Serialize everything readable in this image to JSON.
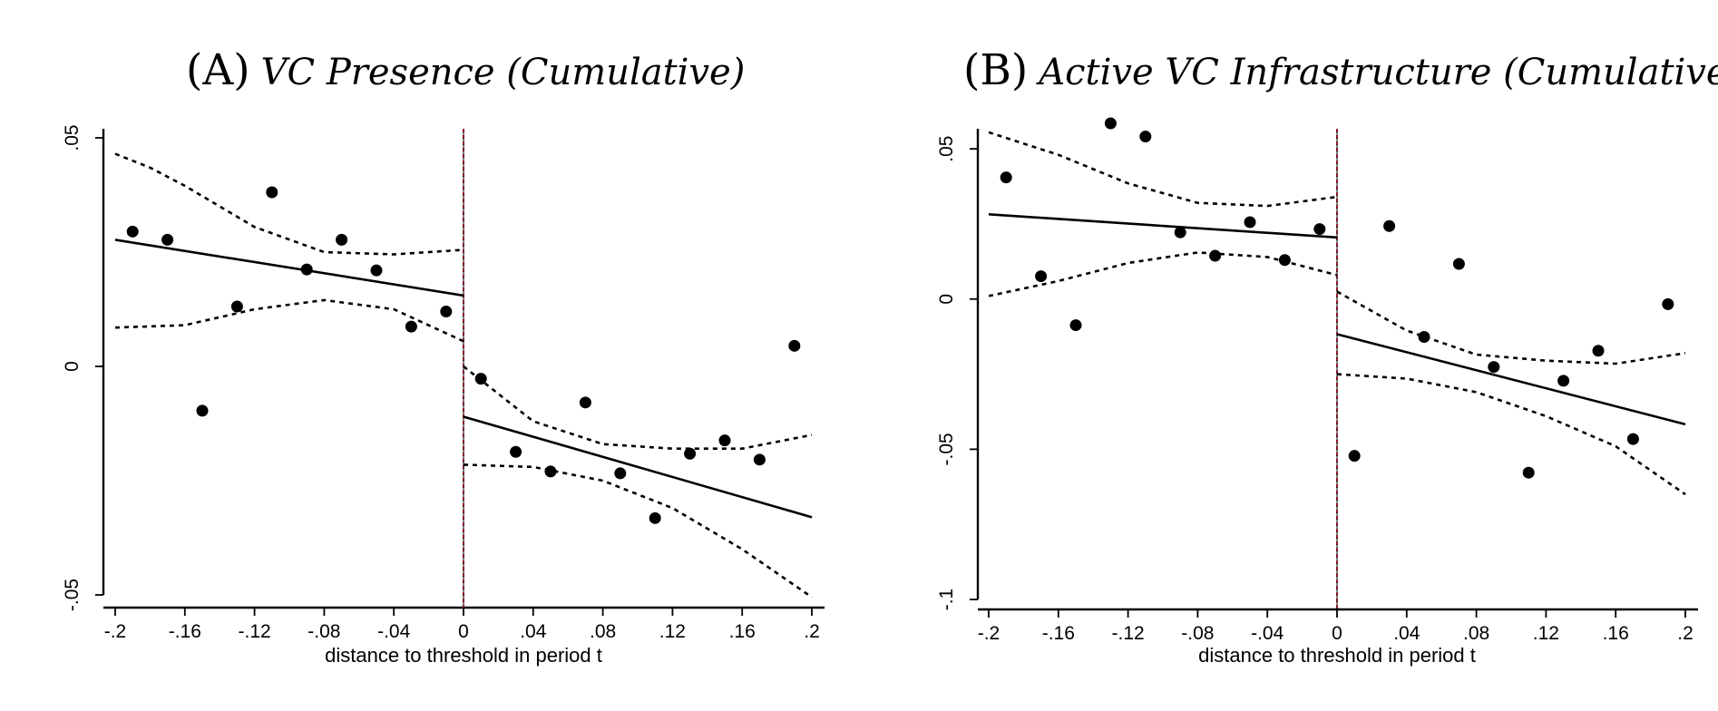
{
  "panels": [
    {
      "letter": "(A)",
      "subtitle": "VC Presence (Cumulative)"
    },
    {
      "letter": "(B)",
      "subtitle": "Active VC Infrastructure (Cumulative)"
    }
  ],
  "chart_data": [
    {
      "type": "scatter",
      "title": "(A) VC Presence (Cumulative)",
      "xlabel": "distance to threshold in period t",
      "ylabel": "",
      "xlim": [
        -0.2,
        0.2
      ],
      "ylim": [
        -0.05,
        0.05
      ],
      "xticks": [
        -0.2,
        -0.16,
        -0.12,
        -0.08,
        -0.04,
        0,
        0.04,
        0.08,
        0.12,
        0.16,
        0.2
      ],
      "xtick_labels": [
        "-.2",
        "-.16",
        "-.12",
        "-.08",
        "-.04",
        "0",
        ".04",
        ".08",
        ".12",
        ".16",
        ".2"
      ],
      "yticks": [
        -0.05,
        0,
        0.05
      ],
      "ytick_labels": [
        "-.05",
        "0",
        ".05"
      ],
      "cutoff": 0,
      "points": [
        [
          -0.19,
          0.0295
        ],
        [
          -0.17,
          0.0277
        ],
        [
          -0.15,
          -0.0097
        ],
        [
          -0.13,
          0.0131
        ],
        [
          -0.11,
          0.0381
        ],
        [
          -0.09,
          0.0212
        ],
        [
          -0.07,
          0.0277
        ],
        [
          -0.05,
          0.021
        ],
        [
          -0.03,
          0.0087
        ],
        [
          -0.01,
          0.012
        ],
        [
          0.01,
          -0.0027
        ],
        [
          0.03,
          -0.0187
        ],
        [
          0.05,
          -0.023
        ],
        [
          0.07,
          -0.0079
        ],
        [
          0.09,
          -0.0234
        ],
        [
          0.11,
          -0.0332
        ],
        [
          0.13,
          -0.0191
        ],
        [
          0.15,
          -0.0162
        ],
        [
          0.17,
          -0.0204
        ],
        [
          0.19,
          0.0045
        ]
      ],
      "fit": {
        "left": {
          "x": [
            -0.2,
            0
          ],
          "y": [
            0.0277,
            0.0155
          ]
        },
        "right": {
          "x": [
            0,
            0.2
          ],
          "y": [
            -0.011,
            -0.033
          ]
        }
      },
      "ci": {
        "left_upper": {
          "x": [
            -0.2,
            -0.18,
            -0.16,
            -0.12,
            -0.08,
            -0.04,
            0
          ],
          "y": [
            0.0465,
            0.0435,
            0.0395,
            0.0305,
            0.025,
            0.0245,
            0.0255
          ]
        },
        "left_lower": {
          "x": [
            -0.2,
            -0.16,
            -0.12,
            -0.08,
            -0.04,
            0
          ],
          "y": [
            0.0085,
            0.009,
            0.0125,
            0.0145,
            0.0125,
            0.0055
          ]
        },
        "right_upper": {
          "x": [
            0,
            0.04,
            0.08,
            0.12,
            0.16,
            0.2
          ],
          "y": [
            0.0,
            -0.012,
            -0.017,
            -0.018,
            -0.018,
            -0.015
          ]
        },
        "right_lower": {
          "x": [
            0,
            0.04,
            0.08,
            0.12,
            0.16,
            0.2
          ],
          "y": [
            -0.0215,
            -0.022,
            -0.025,
            -0.031,
            -0.04,
            -0.0505
          ]
        }
      }
    },
    {
      "type": "scatter",
      "title": "(B) Active VC Infrastructure (Cumulative)",
      "xlabel": "distance to threshold in period t",
      "ylabel": "",
      "xlim": [
        -0.2,
        0.2
      ],
      "ylim": [
        -0.1,
        0.06
      ],
      "xticks": [
        -0.2,
        -0.16,
        -0.12,
        -0.08,
        -0.04,
        0,
        0.04,
        0.08,
        0.12,
        0.16,
        0.2
      ],
      "xtick_labels": [
        "-.2",
        "-.16",
        "-.12",
        "-.08",
        "-.04",
        "0",
        ".04",
        ".08",
        ".12",
        ".16",
        ".2"
      ],
      "yticks": [
        -0.1,
        -0.05,
        0,
        0.05
      ],
      "ytick_labels": [
        "-.1",
        "-.05",
        "0",
        ".05"
      ],
      "cutoff": 0,
      "points": [
        [
          -0.19,
          0.0405
        ],
        [
          -0.17,
          0.0076
        ],
        [
          -0.15,
          -0.0087
        ],
        [
          -0.13,
          0.0585
        ],
        [
          -0.11,
          0.0541
        ],
        [
          -0.09,
          0.0222
        ],
        [
          -0.07,
          0.0144
        ],
        [
          -0.05,
          0.0256
        ],
        [
          -0.03,
          0.013
        ],
        [
          -0.01,
          0.0233
        ],
        [
          0.01,
          -0.0522
        ],
        [
          0.03,
          0.0243
        ],
        [
          0.05,
          -0.0126
        ],
        [
          0.07,
          0.0117
        ],
        [
          0.09,
          -0.0226
        ],
        [
          0.11,
          -0.0578
        ],
        [
          0.13,
          -0.0272
        ],
        [
          0.15,
          -0.0172
        ],
        [
          0.17,
          -0.0466
        ],
        [
          0.19,
          -0.0017
        ]
      ],
      "fit": {
        "left": {
          "x": [
            -0.2,
            0
          ],
          "y": [
            0.0282,
            0.0205
          ]
        },
        "right": {
          "x": [
            0,
            0.2
          ],
          "y": [
            -0.0117,
            -0.0417
          ]
        }
      },
      "ci": {
        "left_upper": {
          "x": [
            -0.2,
            -0.16,
            -0.12,
            -0.08,
            -0.04,
            0
          ],
          "y": [
            0.0555,
            0.048,
            0.0385,
            0.032,
            0.031,
            0.034
          ]
        },
        "left_lower": {
          "x": [
            -0.2,
            -0.16,
            -0.12,
            -0.08,
            -0.04,
            0
          ],
          "y": [
            0.001,
            0.006,
            0.012,
            0.0155,
            0.014,
            0.008
          ]
        },
        "right_upper": {
          "x": [
            0,
            0.04,
            0.08,
            0.12,
            0.16,
            0.2
          ],
          "y": [
            0.0025,
            -0.0105,
            -0.0185,
            -0.0205,
            -0.0215,
            -0.018
          ]
        },
        "right_lower": {
          "x": [
            0,
            0.04,
            0.08,
            0.12,
            0.16,
            0.2
          ],
          "y": [
            -0.025,
            -0.0265,
            -0.031,
            -0.039,
            -0.049,
            -0.065
          ]
        }
      }
    }
  ]
}
